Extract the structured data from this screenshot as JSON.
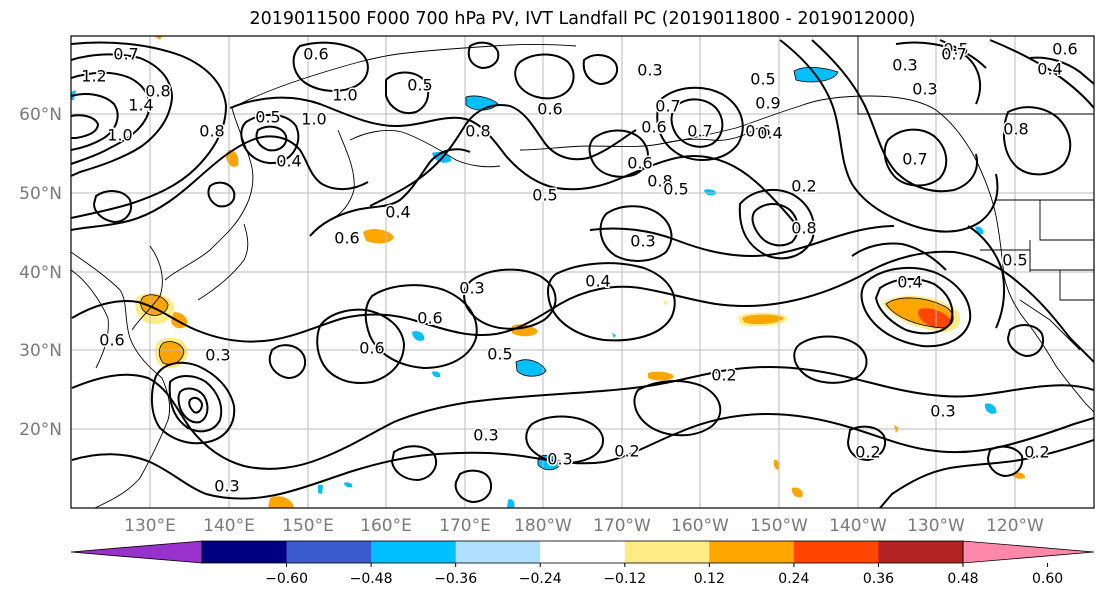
{
  "title": "2019011500 F000 700 hPa PV, IVT Landfall PC (2019011800 - 2019012000)",
  "lat_labels": [
    "60°N",
    "50°N",
    "40°N",
    "30°N",
    "20°N"
  ],
  "lon_labels": [
    "130°E",
    "140°E",
    "150°E",
    "160°E",
    "170°E",
    "180°W",
    "170°W",
    "160°W",
    "150°W",
    "140°W",
    "130°W",
    "120°W"
  ],
  "colorbar": {
    "ticks": [
      "−0.60",
      "−0.48",
      "−0.36",
      "−0.24",
      "−0.12",
      "0.12",
      "0.24",
      "0.36",
      "0.48",
      "0.60"
    ],
    "colors": [
      "#9932cc",
      "#000080",
      "#3a5bcd",
      "#00bfff",
      "#afe0ff",
      "#ffffff",
      "#ffec87",
      "#ffa500",
      "#ff4500",
      "#b22222",
      "#ff88aa"
    ]
  },
  "contour_labels": [
    "0.7",
    "1.2",
    "1.4",
    "0.8",
    "1.0",
    "0.6",
    "1.0",
    "1.0",
    "0.5",
    "0.8",
    "0.4",
    "0.8",
    "0.7",
    "0.6",
    "0.4",
    "0.6",
    "0.5",
    "0.6",
    "0.5",
    "0.3",
    "0.7",
    "0.6",
    "0.9",
    "0.8",
    "0.5",
    "0.6",
    "0.4",
    "0.3",
    "0.2",
    "0.5",
    "0.8",
    "0.7",
    "0.5",
    "0.6",
    "0.3",
    "0.4",
    "0.3",
    "0.3",
    "0.4",
    "0.6",
    "0.5",
    "0.6",
    "0.3",
    "0.3",
    "0.3",
    "0.2",
    "0.2",
    "0.3",
    "0.3",
    "0.2",
    "0.2",
    "0.7",
    "0.4",
    "0.5",
    "0.8",
    "0.6"
  ]
}
